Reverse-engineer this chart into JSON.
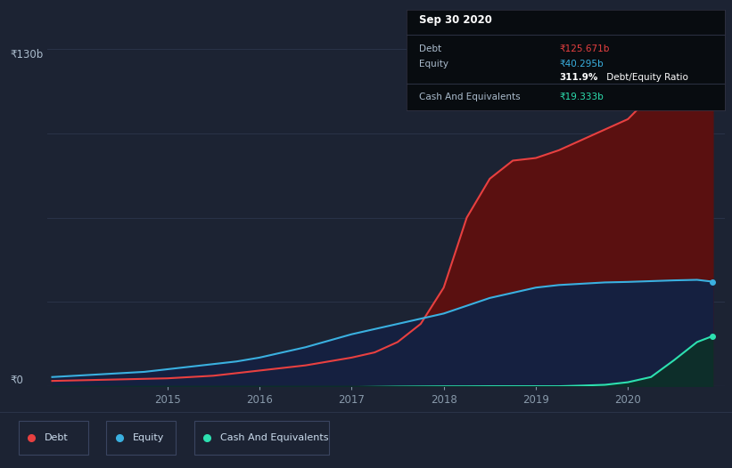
{
  "background_color": "#1c2333",
  "plot_bg_color": "#1c2333",
  "grid_color": "#2a3348",
  "debt_color": "#e84040",
  "equity_color": "#3ab0e0",
  "cash_color": "#2de0b0",
  "debt_fill": "#5a1010",
  "equity_fill": "#152040",
  "cash_fill": "#0d3028",
  "ylabel_text": "₹130b",
  "ylabel0_text": "₹0",
  "x_ticks": [
    "2015",
    "2016",
    "2017",
    "2018",
    "2019",
    "2020"
  ],
  "tooltip": {
    "date": "Sep 30 2020",
    "debt_label": "Debt",
    "debt_value": "₹125.671b",
    "equity_label": "Equity",
    "equity_value": "₹40.295b",
    "ratio_text": "311.9%",
    "ratio_suffix": " Debt/Equity Ratio",
    "cash_label": "Cash And Equivalents",
    "cash_value": "₹19.333b"
  },
  "legend": [
    {
      "label": "Debt",
      "color": "#e84040"
    },
    {
      "label": "Equity",
      "color": "#3ab0e0"
    },
    {
      "label": "Cash And Equivalents",
      "color": "#2de0b0"
    }
  ],
  "years": [
    2013.75,
    2014.0,
    2014.25,
    2014.5,
    2014.75,
    2015.0,
    2015.25,
    2015.5,
    2015.75,
    2016.0,
    2016.25,
    2016.5,
    2016.75,
    2017.0,
    2017.25,
    2017.5,
    2017.75,
    2018.0,
    2018.25,
    2018.5,
    2018.75,
    2019.0,
    2019.25,
    2019.5,
    2019.75,
    2020.0,
    2020.25,
    2020.5,
    2020.75,
    2020.92
  ],
  "debt": [
    2.0,
    2.2,
    2.4,
    2.6,
    2.8,
    3.0,
    3.5,
    4.0,
    5.0,
    6.0,
    7.0,
    8.0,
    9.5,
    11.0,
    13.0,
    17.0,
    24.0,
    38.0,
    65.0,
    80.0,
    87.0,
    88.0,
    91.0,
    95.0,
    99.0,
    103.0,
    112.0,
    119.0,
    124.0,
    126.0
  ],
  "equity": [
    3.5,
    4.0,
    4.5,
    5.0,
    5.5,
    6.5,
    7.5,
    8.5,
    9.5,
    11.0,
    13.0,
    15.0,
    17.5,
    20.0,
    22.0,
    24.0,
    26.0,
    28.0,
    31.0,
    34.0,
    36.0,
    38.0,
    39.0,
    39.5,
    40.0,
    40.2,
    40.5,
    40.8,
    41.0,
    40.3
  ],
  "cash": [
    -1.5,
    -1.5,
    -1.5,
    -1.4,
    -1.3,
    -1.2,
    -1.1,
    -1.0,
    -0.9,
    -0.8,
    -0.7,
    -0.6,
    -0.5,
    -0.4,
    -0.3,
    -0.2,
    -0.15,
    -0.1,
    -0.1,
    -0.05,
    -0.05,
    -0.05,
    -0.05,
    0.2,
    0.5,
    1.5,
    3.5,
    10.0,
    17.0,
    19.3
  ],
  "ylim": [
    0,
    130
  ],
  "xlim": [
    2013.7,
    2021.05
  ],
  "yticks": [
    0,
    32.5,
    65,
    97.5,
    130
  ]
}
